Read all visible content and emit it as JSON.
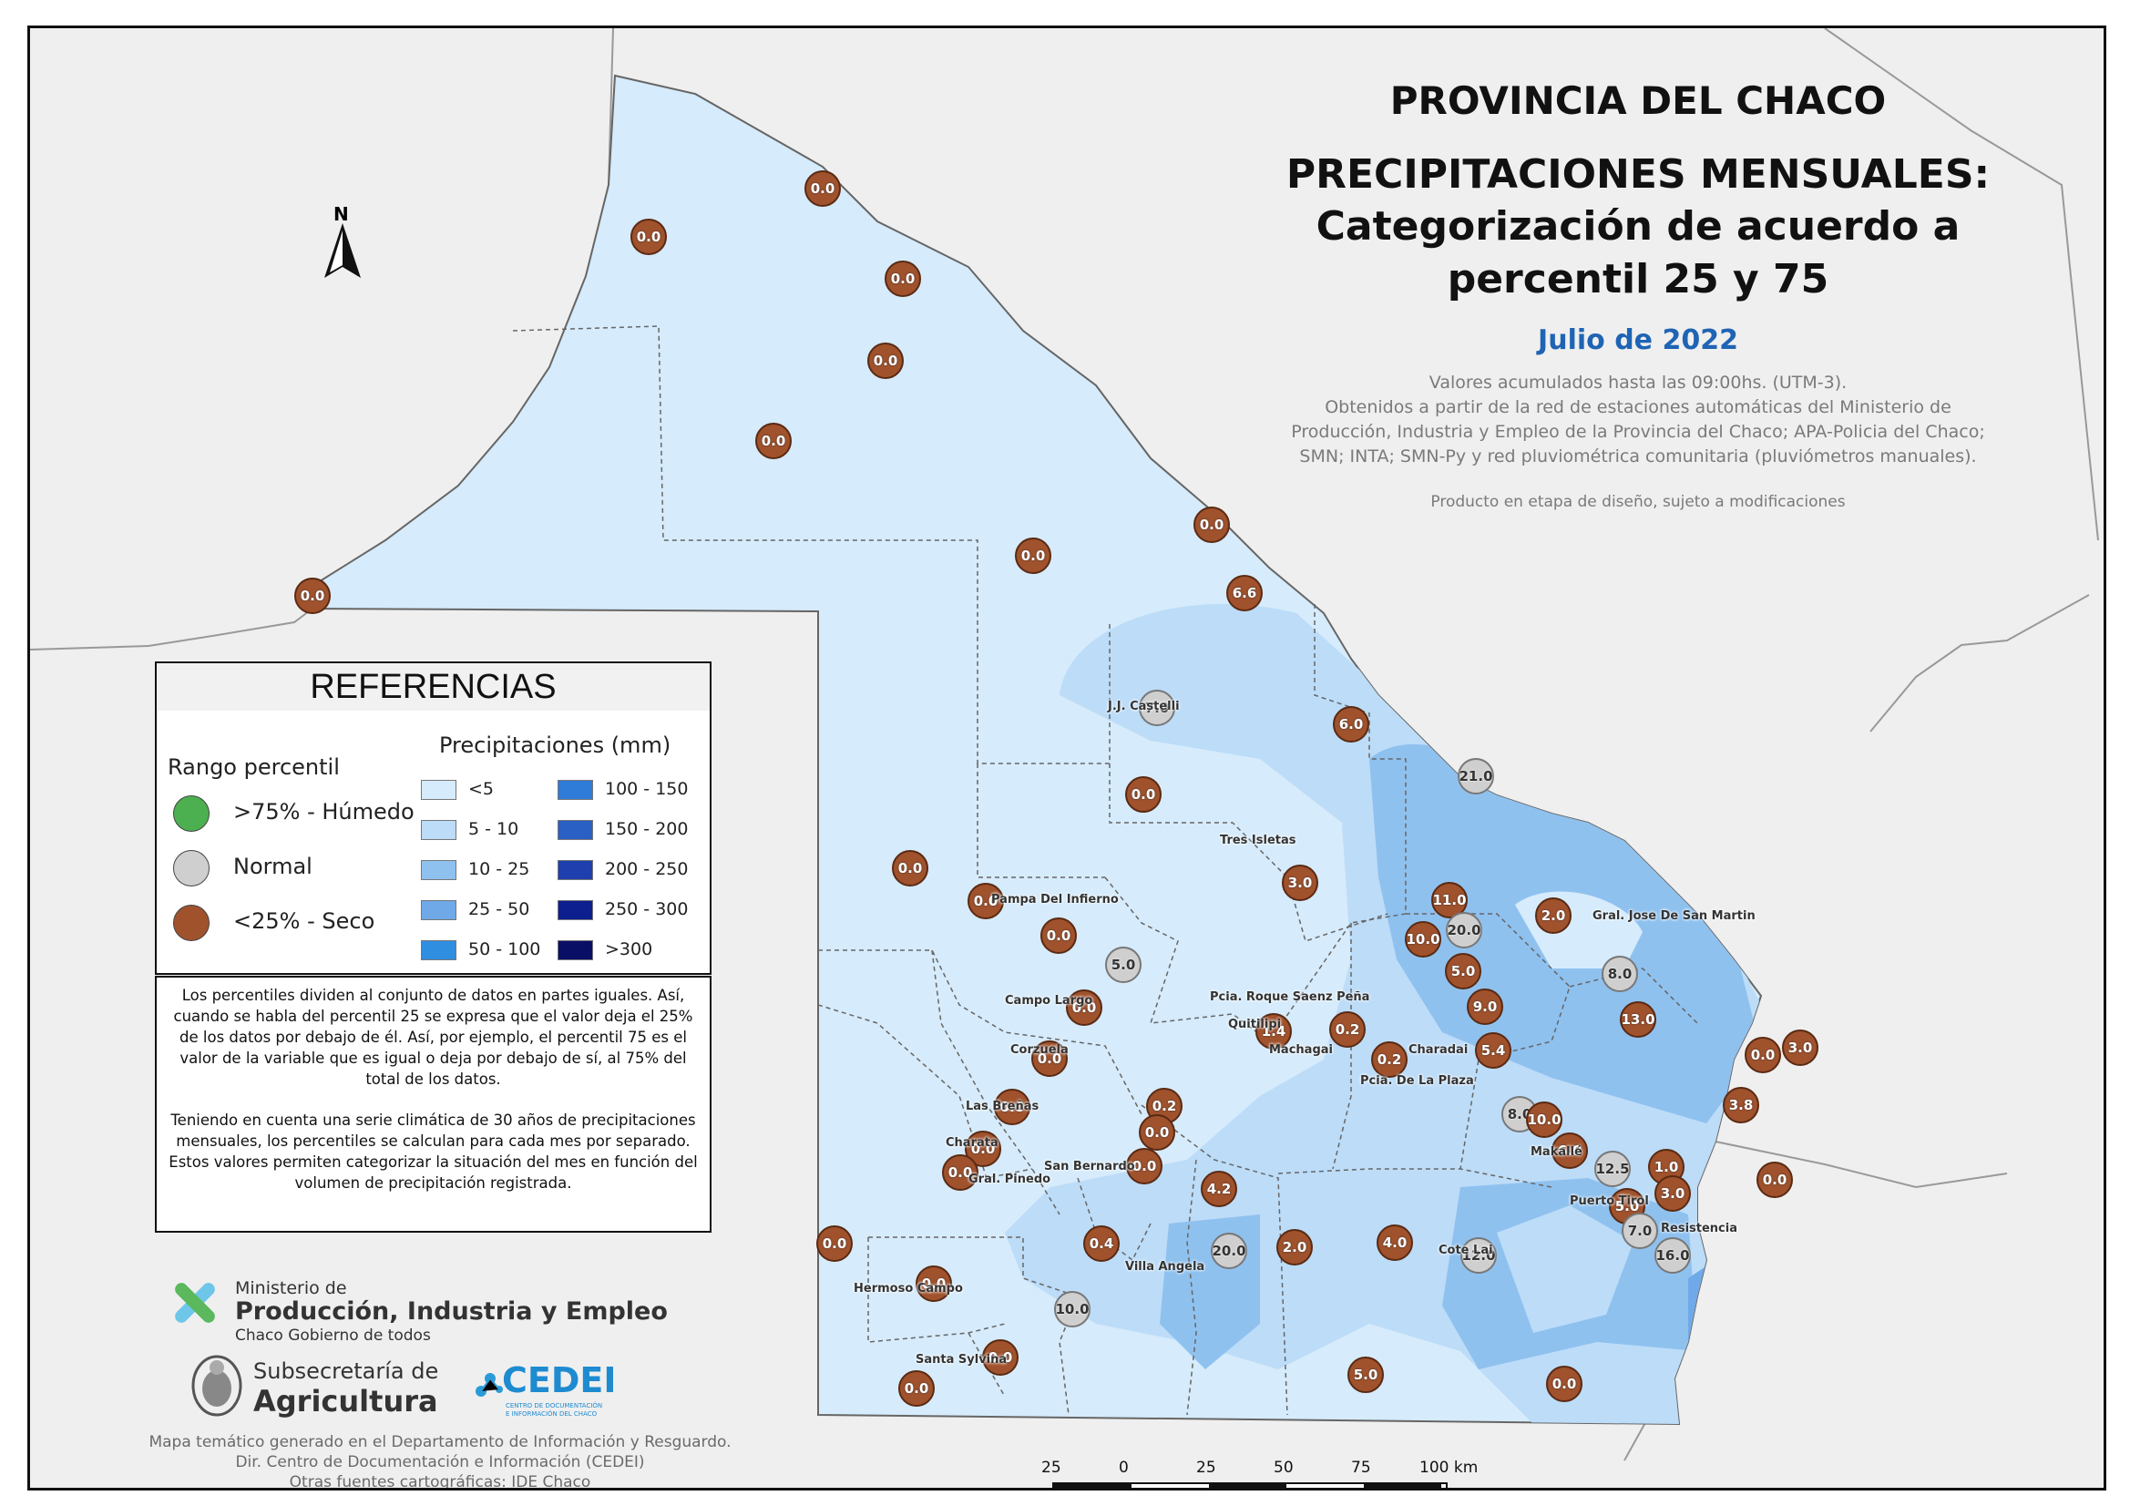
{
  "title": {
    "line1": "PROVINCIA DEL CHACO",
    "line2": "PRECIPITACIONES MENSUALES:",
    "line3": "Categorización de acuerdo a",
    "line4": "percentil 25 y 75",
    "period": "Julio de 2022"
  },
  "subtitle": {
    "l1": "Valores acumulados hasta las 09:00hs. (UTM-3).",
    "l2": "Obtenidos a partir de la red de estaciones automáticas del Ministerio de",
    "l3": "Producción, Industria y Empleo de la Provincia del Chaco; APA-Policia del Chaco;",
    "l4": "SMN; INTA; SMN-Py y red pluviométrica comunitaria (pluviómetros manuales).",
    "note": "Producto en etapa de diseño, sujeto a modificaciones"
  },
  "north": "N",
  "legend": {
    "title": "REFERENCIAS",
    "percentile_title": "Rango percentil",
    "percentile_items": [
      {
        "label": ">75% - Húmedo",
        "color": "#4caf50"
      },
      {
        "label": "Normal",
        "color": "#cfcfcf"
      },
      {
        "label": "<25% - Seco",
        "color": "#a0522d"
      }
    ],
    "precip_title": "Precipitaciones (mm)",
    "precip_items": [
      {
        "label": "<5",
        "color": "#d6ebfb"
      },
      {
        "label": "5 - 10",
        "color": "#bcdcf8"
      },
      {
        "label": "10 - 25",
        "color": "#8fc1ef"
      },
      {
        "label": "25 - 50",
        "color": "#6fa9e8"
      },
      {
        "label": "50 - 100",
        "color": "#2f8ee0"
      },
      {
        "label": "100 - 150",
        "color": "#2f7bd8"
      },
      {
        "label": "150 - 200",
        "color": "#2a5fc4"
      },
      {
        "label": "200 - 250",
        "color": "#1f3fae"
      },
      {
        "label": "250 - 300",
        "color": "#0d1f8f"
      },
      {
        "label": ">300",
        "color": "#0a0f66"
      }
    ]
  },
  "explanation": {
    "p1": "Los percentiles dividen al conjunto de datos en partes iguales. Así, cuando se habla del percentil 25 se expresa que el valor deja el 25% de los datos por debajo de él. Así, por ejemplo, el percentil 75 es el valor de la variable que es igual o deja por debajo de sí, al 75% del total de los datos.",
    "p2": "Teniendo en cuenta una serie climática de 30 años de precipitaciones mensuales, los percentiles se calculan para cada mes por separado. Estos valores permiten categorizar la situación del mes en función del volumen de precipitación registrada."
  },
  "logos": {
    "ministry_small": "Ministerio de",
    "ministry_big": "Producción, Industria y Empleo",
    "ministry_tag": "Chaco Gobierno de todos",
    "subsec_small": "Subsecretaría de",
    "subsec_big": "Agricultura",
    "cedei": "CEDEI",
    "cedei_tag1": "CENTRO DE DOCUMENTACIÓN",
    "cedei_tag2": "E INFORMACIÓN DEL CHACO"
  },
  "credits": {
    "l1": "Mapa temático generado en el Departamento de Información y Resguardo.",
    "l2": "Dir. Centro de Documentación e Información (CEDEI)",
    "l3": "Otras fuentes cartográficas: IDE Chaco"
  },
  "scale": {
    "labels": [
      "25",
      "0",
      "25",
      "50",
      "75",
      "100 km"
    ]
  },
  "place_labels": [
    "J.J. Castelli",
    "Tres Isletas",
    "Pampa Del Infierno",
    "Campo Largo",
    "Corzuela",
    "Las Breñas",
    "Charata",
    "Gral. Pinedo",
    "San Bernardo",
    "Pcia. Roque Saenz Peña",
    "Quitilipi",
    "Machagai",
    "Pcia. De La Plaza",
    "Charadai",
    "Gral. Jose De San Martin",
    "Villa Angela",
    "Hermoso Campo",
    "Santa Sylvina",
    "Puerto Tirol",
    "Resistencia",
    "Makallé",
    "Cote Lai"
  ],
  "stations": [
    {
      "v": "0.0",
      "c": "dry"
    },
    {
      "v": "0.0",
      "c": "dry"
    },
    {
      "v": "0.0",
      "c": "dry"
    },
    {
      "v": "0.0",
      "c": "dry"
    },
    {
      "v": "0.0",
      "c": "dry"
    },
    {
      "v": "0.0",
      "c": "dry"
    },
    {
      "v": "0.0",
      "c": "dry"
    },
    {
      "v": "0.0",
      "c": "dry"
    },
    {
      "v": "6.6",
      "c": "dry"
    },
    {
      "v": "7.0",
      "c": "normal"
    },
    {
      "v": "6.0",
      "c": "dry"
    },
    {
      "v": "21.0",
      "c": "normal"
    },
    {
      "v": "0.0",
      "c": "dry"
    },
    {
      "v": "0.0",
      "c": "dry"
    },
    {
      "v": "0.0",
      "c": "dry"
    },
    {
      "v": "3.0",
      "c": "dry"
    },
    {
      "v": "11.0",
      "c": "dry"
    },
    {
      "v": "20.0",
      "c": "normal"
    },
    {
      "v": "10.0",
      "c": "dry"
    },
    {
      "v": "2.0",
      "c": "dry"
    },
    {
      "v": "0.0",
      "c": "dry"
    },
    {
      "v": "5.0",
      "c": "normal"
    },
    {
      "v": "5.0",
      "c": "dry"
    },
    {
      "v": "8.0",
      "c": "normal"
    },
    {
      "v": "0.0",
      "c": "dry"
    },
    {
      "v": "9.0",
      "c": "dry"
    },
    {
      "v": "13.0",
      "c": "dry"
    },
    {
      "v": "1.4",
      "c": "dry"
    },
    {
      "v": "0.2",
      "c": "dry"
    },
    {
      "v": "0.2",
      "c": "dry"
    },
    {
      "v": "5.4",
      "c": "dry"
    },
    {
      "v": "0.0",
      "c": "dry"
    },
    {
      "v": "0.0",
      "c": "dry"
    },
    {
      "v": "3.0",
      "c": "dry"
    },
    {
      "v": "0.0",
      "c": "dry"
    },
    {
      "v": "0.2",
      "c": "dry"
    },
    {
      "v": "3.8",
      "c": "dry"
    },
    {
      "v": "8.0",
      "c": "normal"
    },
    {
      "v": "10.0",
      "c": "dry"
    },
    {
      "v": "0.0",
      "c": "dry"
    },
    {
      "v": "0.0",
      "c": "dry"
    },
    {
      "v": "6.0",
      "c": "dry"
    },
    {
      "v": "0.0",
      "c": "dry"
    },
    {
      "v": "12.5",
      "c": "normal"
    },
    {
      "v": "1.0",
      "c": "dry"
    },
    {
      "v": "0.0",
      "c": "dry"
    },
    {
      "v": "0.0",
      "c": "dry"
    },
    {
      "v": "4.2",
      "c": "dry"
    },
    {
      "v": "3.0",
      "c": "dry"
    },
    {
      "v": "5.0",
      "c": "dry"
    },
    {
      "v": "7.0",
      "c": "normal"
    },
    {
      "v": "0.0",
      "c": "dry"
    },
    {
      "v": "0.4",
      "c": "dry"
    },
    {
      "v": "20.0",
      "c": "normal"
    },
    {
      "v": "2.0",
      "c": "dry"
    },
    {
      "v": "4.0",
      "c": "dry"
    },
    {
      "v": "12.0",
      "c": "normal"
    },
    {
      "v": "16.0",
      "c": "normal"
    },
    {
      "v": "0.0",
      "c": "dry"
    },
    {
      "v": "10.0",
      "c": "normal"
    },
    {
      "v": "0.0",
      "c": "dry"
    },
    {
      "v": "0.0",
      "c": "dry"
    },
    {
      "v": "5.0",
      "c": "dry"
    },
    {
      "v": "0.0",
      "c": "dry"
    }
  ]
}
